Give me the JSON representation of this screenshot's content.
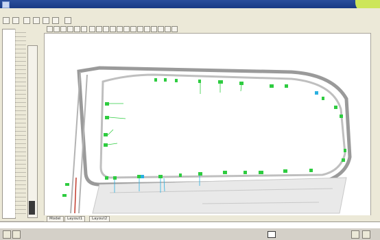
{
  "window": {
    "title": "",
    "logo_color": "#cde65a"
  },
  "menubar": {
    "items": [
      "",
      "",
      "",
      "",
      "",
      "",
      "",
      ""
    ]
  },
  "left_panel": {
    "label": ""
  },
  "tabs": [
    "Model",
    "Layout1",
    "Layout2"
  ],
  "command_line": {
    "text": ""
  },
  "status": {
    "items": [
      "",
      "",
      "",
      "",
      "",
      "",
      "",
      "",
      ""
    ]
  },
  "drawing": {
    "outline_color": "#8a8a8a",
    "marker_color": "#2ecc40",
    "marker_alt_color": "#2ab0e0",
    "accent_color": "#c0392b"
  }
}
